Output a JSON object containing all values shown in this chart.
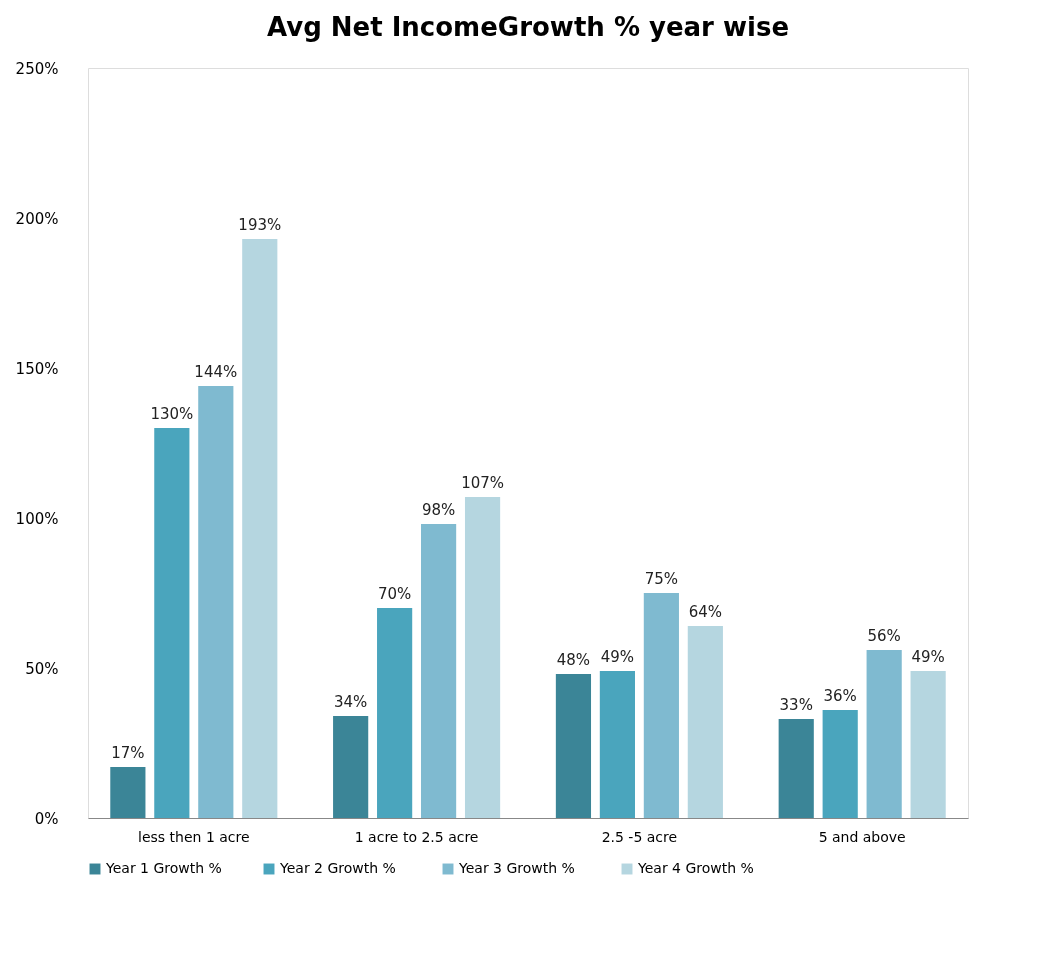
{
  "chart_data": {
    "type": "bar",
    "title": "Avg Net IncomeGrowth % year wise",
    "categories": [
      "less then 1 acre",
      "1 acre to 2.5 acre",
      "2.5 -5 acre",
      "5 and above"
    ],
    "series": [
      {
        "name": "Year 1 Growth %",
        "color": "#3b8597",
        "values": [
          17,
          34,
          48,
          33
        ],
        "value_labels": [
          "17%",
          "34%",
          "48%",
          "33%"
        ]
      },
      {
        "name": "Year 2  Growth %",
        "color": "#4aa5bd",
        "values": [
          130,
          70,
          49,
          36
        ],
        "value_labels": [
          "130%",
          "70%",
          "49%",
          "36%"
        ]
      },
      {
        "name": "Year 3  Growth %",
        "color": "#7fbad0",
        "values": [
          144,
          98,
          75,
          56
        ],
        "value_labels": [
          "144%",
          "98%",
          "75%",
          "56%"
        ]
      },
      {
        "name": "Year 4  Growth %",
        "color": "#b5d6e0",
        "values": [
          193,
          107,
          64,
          49
        ],
        "value_labels": [
          "193%",
          "107%",
          "64%",
          "49%"
        ]
      }
    ],
    "ylim": [
      0,
      250
    ],
    "yticks": [
      {
        "value": 0,
        "label": "0%"
      },
      {
        "value": 50,
        "label": "50%"
      },
      {
        "value": 100,
        "label": "100%"
      },
      {
        "value": 150,
        "label": "150%"
      },
      {
        "value": 200,
        "label": "200%"
      },
      {
        "value": 250,
        "label": "250%"
      }
    ],
    "grid": false,
    "legend": "bottom"
  }
}
